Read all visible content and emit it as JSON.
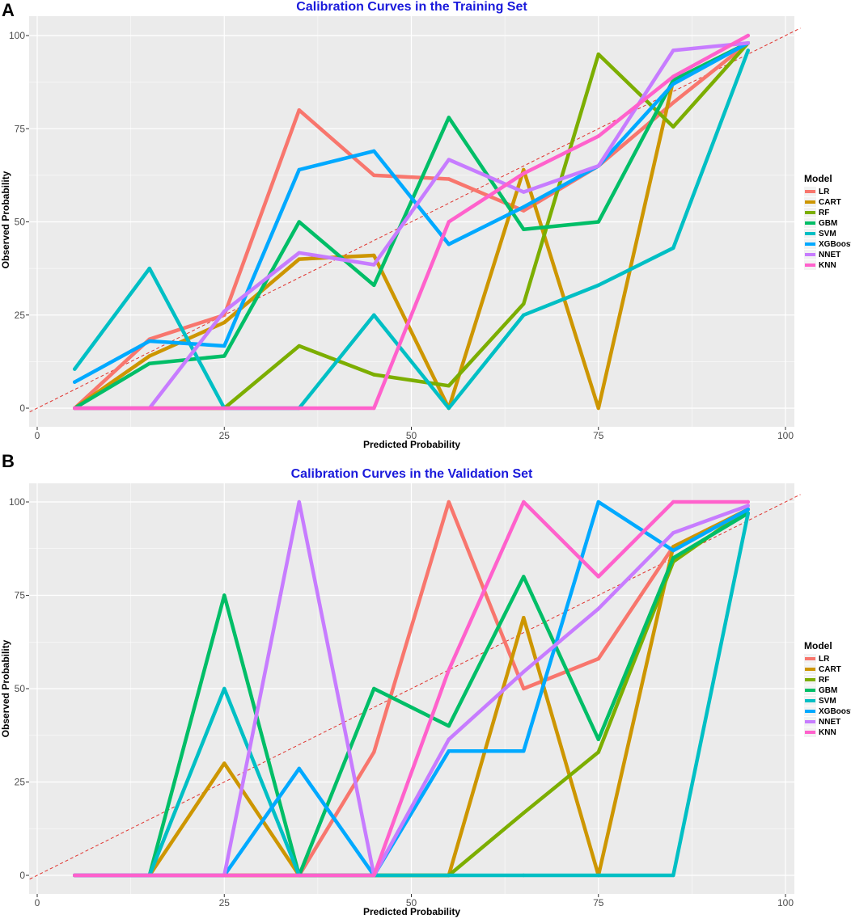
{
  "colors": {
    "title": "#1a1adb",
    "panel_bg": "#ebebeb",
    "grid": "#ffffff",
    "reference_line": "#e0322d",
    "series": {
      "LR": "#f8766d",
      "CART": "#cd9600",
      "RF": "#7cae00",
      "GBM": "#00be67",
      "SVM": "#00bfc4",
      "XGBoost": "#00a9ff",
      "NNET": "#c77cff",
      "KNN": "#ff61cc"
    }
  },
  "chart_data": [
    {
      "type": "line",
      "panel_label": "A",
      "title": "Calibration Curves in the Training Set",
      "xlabel": "Predicted Probability",
      "ylabel": "Observed Probability",
      "xlim": [
        0,
        100
      ],
      "ylim": [
        0,
        100
      ],
      "xticks": [
        0,
        25,
        50,
        75,
        100
      ],
      "yticks": [
        0,
        25,
        50,
        75,
        100
      ],
      "grid": true,
      "legend_title": "Model",
      "legend_position": "right",
      "reference_line": "y = x (dashed)",
      "series": [
        {
          "name": "LR",
          "x": [
            5,
            15,
            25,
            35,
            45,
            55,
            65,
            75,
            85,
            95
          ],
          "y": [
            0,
            18.5,
            25,
            80,
            62.5,
            61.5,
            53,
            65,
            82,
            98
          ]
        },
        {
          "name": "CART",
          "x": [
            5,
            15,
            25,
            35,
            45,
            55,
            65,
            75,
            85,
            95
          ],
          "y": [
            0,
            14,
            23,
            40,
            41,
            0,
            64,
            0,
            88,
            98
          ]
        },
        {
          "name": "RF",
          "x": [
            5,
            15,
            25,
            35,
            45,
            55,
            65,
            75,
            85,
            95
          ],
          "y": [
            0,
            0,
            0,
            16.7,
            9,
            6,
            28,
            95,
            75.5,
            98
          ]
        },
        {
          "name": "GBM",
          "x": [
            5,
            15,
            25,
            35,
            45,
            55,
            65,
            75,
            85,
            95
          ],
          "y": [
            0,
            12,
            14,
            50,
            33,
            78,
            48,
            50,
            88,
            98
          ]
        },
        {
          "name": "SVM",
          "x": [
            5,
            15,
            25,
            35,
            45,
            55,
            65,
            75,
            85,
            95
          ],
          "y": [
            10.5,
            37.5,
            0,
            0,
            25,
            0,
            25,
            33,
            43,
            96
          ]
        },
        {
          "name": "XGBoost",
          "x": [
            5,
            15,
            25,
            35,
            45,
            55,
            65,
            75,
            85,
            95
          ],
          "y": [
            7,
            18,
            16.7,
            64,
            69,
            44,
            54,
            65,
            87,
            98
          ]
        },
        {
          "name": "NNET",
          "x": [
            5,
            15,
            25,
            35,
            45,
            55,
            65,
            75,
            85,
            95
          ],
          "y": [
            0,
            0,
            26,
            41.7,
            38.5,
            66.7,
            58,
            65,
            96,
            98
          ]
        },
        {
          "name": "KNN",
          "x": [
            5,
            15,
            25,
            35,
            45,
            55,
            65,
            75,
            85,
            95
          ],
          "y": [
            0,
            0,
            0,
            0,
            0,
            50,
            63,
            73,
            89,
            100
          ]
        }
      ]
    },
    {
      "type": "line",
      "panel_label": "B",
      "title": "Calibration Curves in the Validation Set",
      "xlabel": "Predicted Probability",
      "ylabel": "Observed Probability",
      "xlim": [
        0,
        100
      ],
      "ylim": [
        0,
        100
      ],
      "xticks": [
        0,
        25,
        50,
        75,
        100
      ],
      "yticks": [
        0,
        25,
        50,
        75,
        100
      ],
      "grid": true,
      "legend_title": "Model",
      "legend_position": "right",
      "reference_line": "y = x (dashed)",
      "series": [
        {
          "name": "LR",
          "x": [
            5,
            15,
            25,
            35,
            45,
            55,
            65,
            75,
            85,
            95
          ],
          "y": [
            0,
            0,
            0,
            0,
            33,
            100,
            50,
            58,
            88,
            98
          ]
        },
        {
          "name": "CART",
          "x": [
            5,
            15,
            25,
            35,
            45,
            55,
            65,
            75,
            85,
            95
          ],
          "y": [
            0,
            0,
            30,
            0,
            0,
            0,
            69,
            0,
            88,
            98
          ]
        },
        {
          "name": "RF",
          "x": [
            5,
            15,
            25,
            35,
            45,
            55,
            65,
            75,
            85,
            95
          ],
          "y": [
            0,
            0,
            0,
            0,
            0,
            0,
            16.7,
            33,
            84,
            98
          ]
        },
        {
          "name": "GBM",
          "x": [
            5,
            15,
            25,
            35,
            45,
            55,
            65,
            75,
            85,
            95
          ],
          "y": [
            0,
            0,
            75,
            0,
            50,
            40,
            80,
            36.4,
            85,
            97
          ]
        },
        {
          "name": "SVM",
          "x": [
            5,
            15,
            25,
            35,
            45,
            55,
            65,
            75,
            85,
            95
          ],
          "y": [
            0,
            0,
            50,
            0,
            0,
            0,
            0,
            0,
            0,
            97
          ]
        },
        {
          "name": "XGBoost",
          "x": [
            5,
            15,
            25,
            35,
            45,
            55,
            65,
            75,
            85,
            95
          ],
          "y": [
            0,
            0,
            0,
            28.6,
            0,
            33.3,
            33.3,
            100,
            87,
            98
          ]
        },
        {
          "name": "NNET",
          "x": [
            5,
            15,
            25,
            35,
            45,
            55,
            65,
            75,
            85,
            95
          ],
          "y": [
            0,
            0,
            0,
            100,
            0,
            36.4,
            54.5,
            71.4,
            91.7,
            99
          ]
        },
        {
          "name": "KNN",
          "x": [
            5,
            15,
            25,
            35,
            45,
            55,
            65,
            75,
            85,
            95
          ],
          "y": [
            0,
            0,
            0,
            0,
            0,
            55,
            100,
            80,
            100,
            100
          ]
        }
      ]
    }
  ]
}
